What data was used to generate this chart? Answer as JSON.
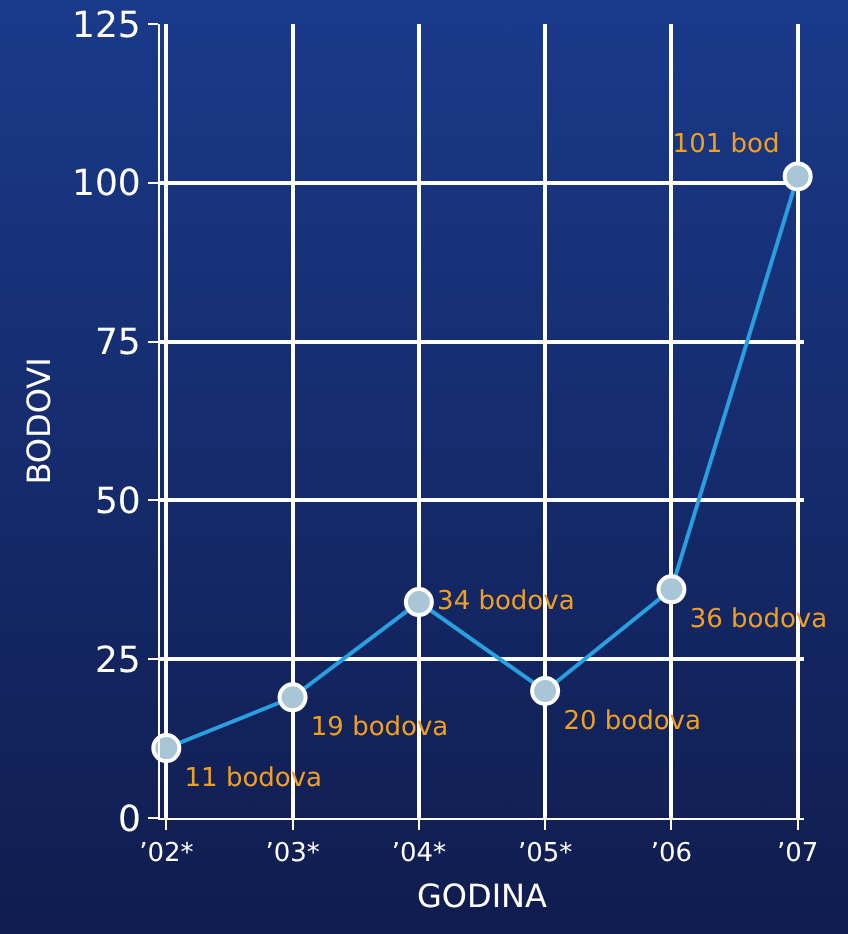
{
  "chart_data": {
    "type": "line",
    "xlabel": "GODINA",
    "ylabel": "BODOVI",
    "categories": [
      "’02*",
      "’03*",
      "’04*",
      "’05*",
      "’06",
      "’07"
    ],
    "series": [
      {
        "color": "#2a9fe0",
        "values": [
          11,
          19,
          34,
          20,
          36,
          101
        ],
        "value_labels": [
          "11 bodova",
          "19 bodova",
          "34 bodova",
          "20 bodova",
          "36 bodova",
          "101 bod"
        ]
      }
    ],
    "ylim": [
      0,
      125
    ],
    "yticks": [
      0,
      25,
      50,
      75,
      100,
      125
    ],
    "grid": true,
    "marker": "circle",
    "line_style": "solid"
  }
}
